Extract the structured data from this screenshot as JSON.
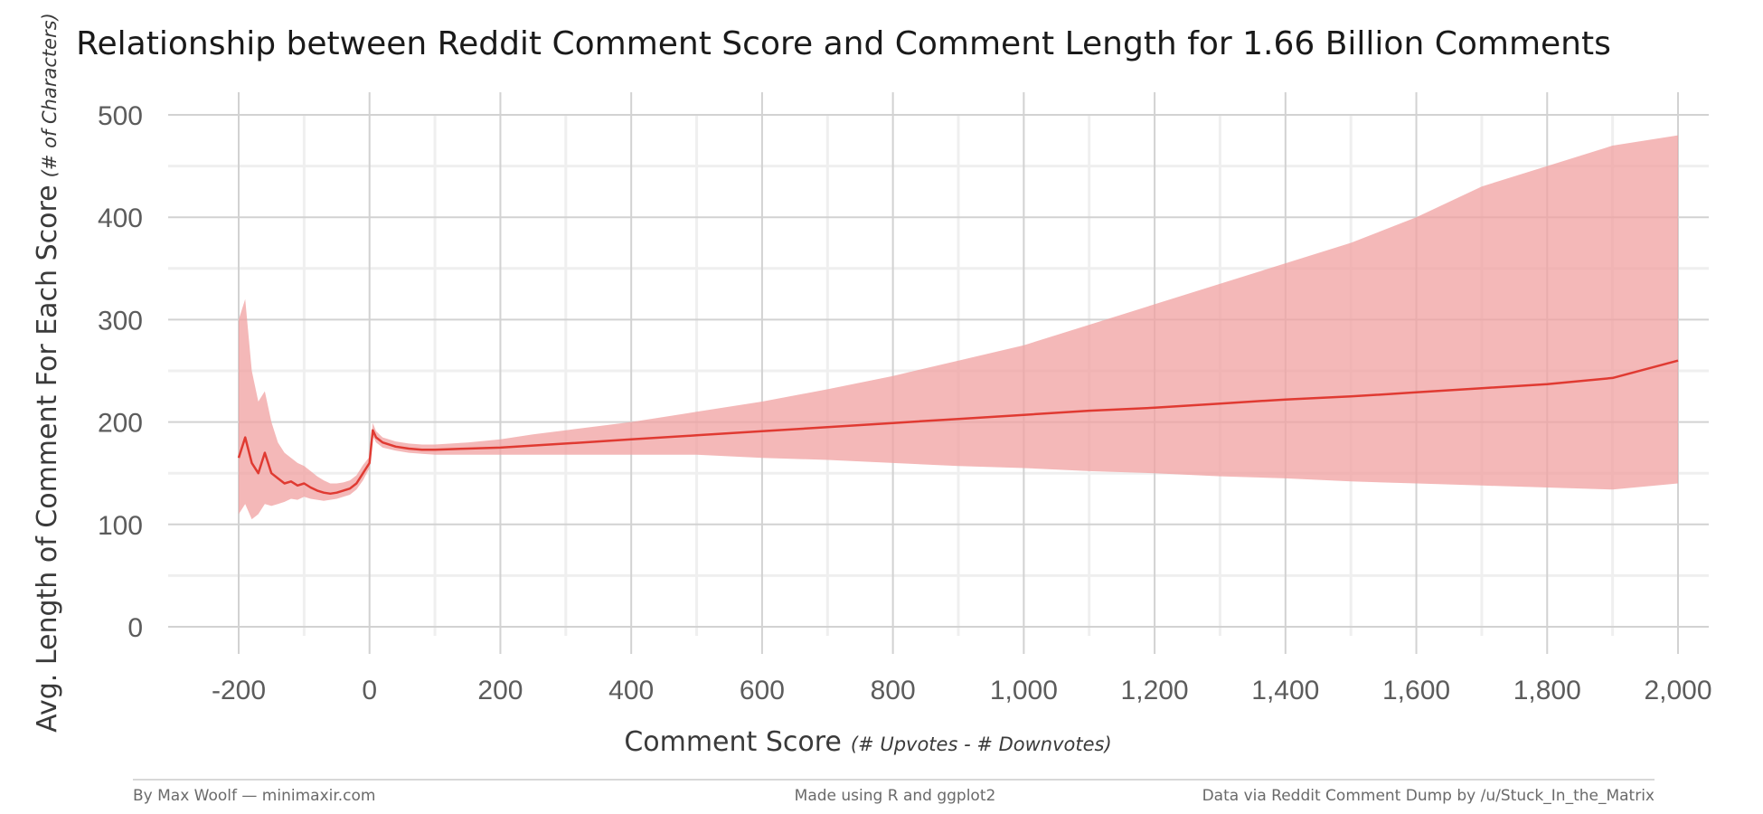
{
  "chart_data": {
    "type": "line",
    "title": "Relationship between Reddit Comment Score and Comment Length for 1.66 Billion Comments",
    "xlabel": "Comment Score",
    "xlabel_note": "(# Upvotes - # Downvotes)",
    "ylabel": "Avg. Length of Comment For Each Score",
    "ylabel_note": "(# of Characters)",
    "xlim": [
      -200,
      2000
    ],
    "ylim": [
      0,
      500
    ],
    "x_ticks": [
      -200,
      0,
      200,
      400,
      600,
      800,
      1000,
      1200,
      1400,
      1600,
      1800,
      2000
    ],
    "x_tick_labels": [
      "-200",
      "0",
      "200",
      "400",
      "600",
      "800",
      "1,000",
      "1,200",
      "1,400",
      "1,600",
      "1,800",
      "2,000"
    ],
    "y_ticks": [
      0,
      100,
      200,
      300,
      400,
      500
    ],
    "y_tick_labels": [
      "0",
      "100",
      "200",
      "300",
      "400",
      "500"
    ],
    "grid": true,
    "series": [
      {
        "color": "#e03a32",
        "band_color": "#f0a0a0",
        "x": [
          -200,
          -190,
          -180,
          -170,
          -160,
          -150,
          -140,
          -130,
          -120,
          -110,
          -100,
          -90,
          -80,
          -70,
          -60,
          -50,
          -40,
          -30,
          -20,
          -10,
          -5,
          0,
          5,
          10,
          20,
          40,
          60,
          80,
          100,
          150,
          200,
          250,
          300,
          400,
          500,
          600,
          700,
          800,
          900,
          1000,
          1100,
          1200,
          1300,
          1400,
          1500,
          1600,
          1700,
          1800,
          1900,
          2000
        ],
        "y": [
          165,
          185,
          160,
          150,
          170,
          150,
          145,
          140,
          142,
          138,
          140,
          136,
          133,
          131,
          130,
          131,
          133,
          135,
          140,
          150,
          155,
          160,
          192,
          185,
          180,
          176,
          174,
          173,
          173,
          174,
          175,
          177,
          179,
          183,
          187,
          191,
          195,
          199,
          203,
          207,
          211,
          214,
          218,
          222,
          225,
          229,
          233,
          237,
          243,
          260
        ],
        "lower": [
          110,
          120,
          105,
          110,
          120,
          118,
          120,
          122,
          125,
          124,
          127,
          125,
          124,
          123,
          124,
          125,
          127,
          129,
          134,
          143,
          149,
          155,
          186,
          180,
          175,
          172,
          170,
          169,
          168,
          168,
          168,
          168,
          168,
          168,
          168,
          165,
          163,
          160,
          157,
          155,
          152,
          150,
          147,
          145,
          142,
          140,
          138,
          136,
          134,
          140
        ],
        "upper": [
          300,
          320,
          250,
          220,
          230,
          200,
          180,
          170,
          165,
          160,
          157,
          152,
          147,
          143,
          140,
          140,
          141,
          143,
          148,
          158,
          162,
          166,
          199,
          191,
          185,
          181,
          179,
          178,
          178,
          180,
          183,
          188,
          192,
          200,
          210,
          220,
          232,
          245,
          260,
          275,
          295,
          315,
          335,
          355,
          375,
          400,
          430,
          450,
          470,
          480
        ]
      }
    ]
  },
  "footer": {
    "left": "By Max Woolf — minimaxir.com",
    "center": "Made using R and ggplot2",
    "right": "Data via Reddit Comment Dump by /u/Stuck_In_the_Matrix"
  },
  "colors": {
    "line": "#e03a32",
    "band": "#f0a0a0",
    "grid_major": "#d2d2d2",
    "grid_minor": "#efefef"
  }
}
